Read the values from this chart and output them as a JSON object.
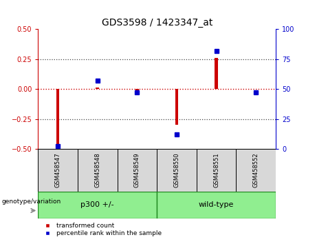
{
  "title": "GDS3598 / 1423347_at",
  "samples": [
    "GSM458547",
    "GSM458548",
    "GSM458549",
    "GSM458550",
    "GSM458551",
    "GSM458552"
  ],
  "red_bars": [
    -0.5,
    0.01,
    -0.02,
    -0.3,
    0.26,
    0.0
  ],
  "blue_dots_pct": [
    2,
    57,
    47,
    12,
    82,
    47
  ],
  "ylim_left": [
    -0.5,
    0.5
  ],
  "ylim_right": [
    0,
    100
  ],
  "bar_color": "#cc0000",
  "dot_color": "#0000cc",
  "zero_line_color": "#cc0000",
  "dotted_line_color": "#444444",
  "bg_color": "#d8d8d8",
  "group_fill_color": "#90ee90",
  "group_edge_color": "#228B22",
  "legend_red_label": "transformed count",
  "legend_blue_label": "percentile rank within the sample",
  "genotype_label": "genotype/variation",
  "group_defs": [
    {
      "start": 0,
      "end": 2,
      "label": "p300 +/-"
    },
    {
      "start": 3,
      "end": 5,
      "label": "wild-type"
    }
  ],
  "bar_width": 0.08,
  "title_fontsize": 10,
  "tick_fontsize": 7,
  "sample_fontsize": 6,
  "group_fontsize": 8,
  "legend_fontsize": 6.5,
  "geno_fontsize": 6.5
}
